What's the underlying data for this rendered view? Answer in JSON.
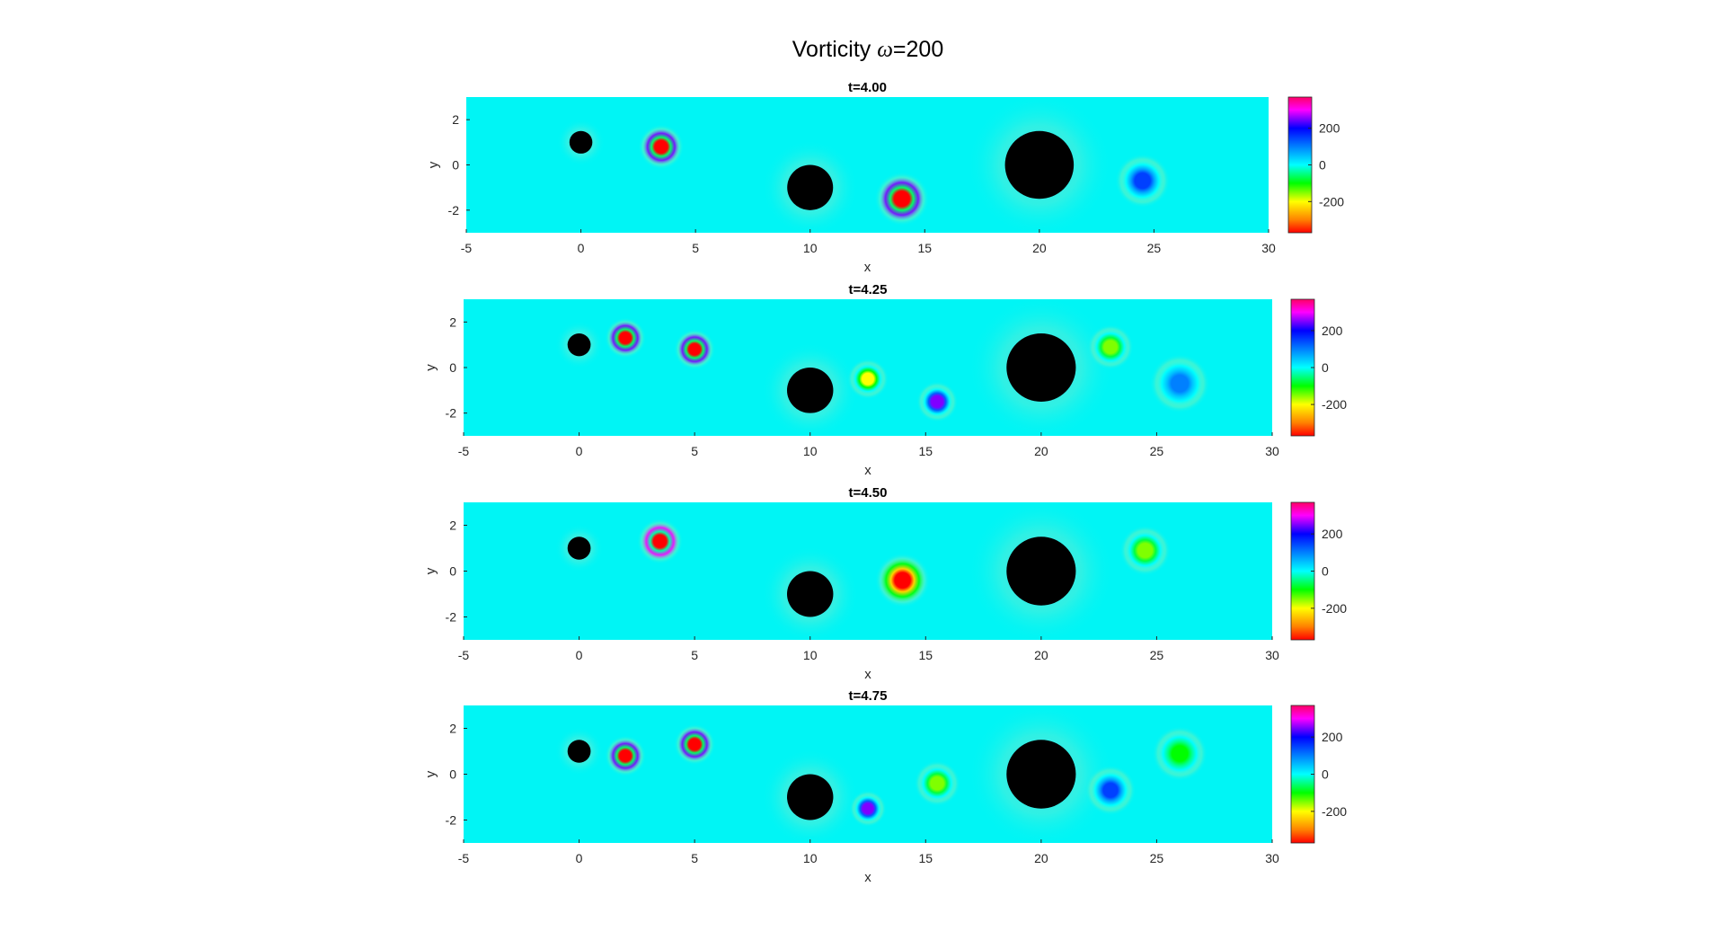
{
  "figure": {
    "title_prefix": "Vorticity ",
    "title_symbol": "ω",
    "title_suffix": "=200"
  },
  "chart_data": [
    {
      "type": "heatmap",
      "title": "t=4.00",
      "xlabel": "x",
      "ylabel": "y",
      "xlim": [
        -5,
        30
      ],
      "ylim": [
        -3,
        3
      ],
      "xticks": [
        -5,
        0,
        5,
        10,
        15,
        20,
        25,
        30
      ],
      "yticks": [
        -2,
        0,
        2
      ],
      "colorbar": {
        "ticks": [
          200,
          0,
          -200
        ],
        "range": [
          -370,
          370
        ]
      },
      "cylinders": [
        {
          "x": 0,
          "y": 1,
          "r": 0.5
        },
        {
          "x": 10,
          "y": -1,
          "r": 1
        },
        {
          "x": 20,
          "y": 0,
          "r": 1.5
        }
      ],
      "vortices": [
        {
          "x": 3.5,
          "y": 0.8,
          "peak": -370,
          "halo": 250,
          "r": 1.0
        },
        {
          "x": 14,
          "y": -1.5,
          "peak": -370,
          "halo": 250,
          "r": 1.2
        },
        {
          "x": 24.5,
          "y": -0.7,
          "peak": 150,
          "halo": 0,
          "r": 1.2
        }
      ]
    },
    {
      "type": "heatmap",
      "title": "t=4.25",
      "xlabel": "x",
      "ylabel": "y",
      "xlim": [
        -5,
        30
      ],
      "ylim": [
        -3,
        3
      ],
      "xticks": [
        -5,
        0,
        5,
        10,
        15,
        20,
        25,
        30
      ],
      "yticks": [
        -2,
        0,
        2
      ],
      "colorbar": {
        "ticks": [
          200,
          0,
          -200
        ],
        "range": [
          -370,
          370
        ]
      },
      "cylinders": [
        {
          "x": 0,
          "y": 1,
          "r": 0.5
        },
        {
          "x": 10,
          "y": -1,
          "r": 1
        },
        {
          "x": 20,
          "y": 0,
          "r": 1.5
        }
      ],
      "vortices": [
        {
          "x": 2,
          "y": 1.3,
          "peak": -370,
          "halo": 250,
          "r": 0.9
        },
        {
          "x": 5,
          "y": 0.8,
          "peak": -370,
          "halo": 250,
          "r": 0.9
        },
        {
          "x": 12.5,
          "y": -0.5,
          "peak": -200,
          "halo": 0,
          "r": 0.9
        },
        {
          "x": 15.5,
          "y": -1.5,
          "peak": 250,
          "halo": 0,
          "r": 0.9
        },
        {
          "x": 23,
          "y": 0.9,
          "peak": -150,
          "halo": 0,
          "r": 1.0
        },
        {
          "x": 26,
          "y": -0.7,
          "peak": 100,
          "halo": 0,
          "r": 1.3
        }
      ]
    },
    {
      "type": "heatmap",
      "title": "t=4.50",
      "xlabel": "x",
      "ylabel": "y",
      "xlim": [
        -5,
        30
      ],
      "ylim": [
        -3,
        3
      ],
      "xticks": [
        -5,
        0,
        5,
        10,
        15,
        20,
        25,
        30
      ],
      "yticks": [
        -2,
        0,
        2
      ],
      "colorbar": {
        "ticks": [
          200,
          0,
          -200
        ],
        "range": [
          -370,
          370
        ]
      },
      "cylinders": [
        {
          "x": 0,
          "y": 1,
          "r": 0.5
        },
        {
          "x": 10,
          "y": -1,
          "r": 1
        },
        {
          "x": 20,
          "y": 0,
          "r": 1.5
        }
      ],
      "vortices": [
        {
          "x": 3.5,
          "y": 1.3,
          "peak": -370,
          "halo": 300,
          "r": 1.0
        },
        {
          "x": 14,
          "y": -0.4,
          "peak": -370,
          "halo": -100,
          "r": 1.2
        },
        {
          "x": 24.5,
          "y": 0.9,
          "peak": -150,
          "halo": 0,
          "r": 1.1
        }
      ]
    },
    {
      "type": "heatmap",
      "title": "t=4.75",
      "xlabel": "x",
      "ylabel": "y",
      "xlim": [
        -5,
        30
      ],
      "ylim": [
        -3,
        3
      ],
      "xticks": [
        -5,
        0,
        5,
        10,
        15,
        20,
        25,
        30
      ],
      "yticks": [
        -2,
        0,
        2
      ],
      "colorbar": {
        "ticks": [
          200,
          0,
          -200
        ],
        "range": [
          -370,
          370
        ]
      },
      "cylinders": [
        {
          "x": 0,
          "y": 1,
          "r": 0.5
        },
        {
          "x": 10,
          "y": -1,
          "r": 1
        },
        {
          "x": 20,
          "y": 0,
          "r": 1.5
        }
      ],
      "vortices": [
        {
          "x": 2,
          "y": 0.8,
          "peak": -370,
          "halo": 250,
          "r": 0.9
        },
        {
          "x": 5,
          "y": 1.3,
          "peak": -370,
          "halo": 250,
          "r": 0.9
        },
        {
          "x": 12.5,
          "y": -1.5,
          "peak": 250,
          "halo": 0,
          "r": 0.8
        },
        {
          "x": 15.5,
          "y": -0.4,
          "peak": -150,
          "halo": 0,
          "r": 1.0
        },
        {
          "x": 23,
          "y": -0.7,
          "peak": 150,
          "halo": 0,
          "r": 1.1
        },
        {
          "x": 26,
          "y": 0.9,
          "peak": -100,
          "halo": 0,
          "r": 1.2
        }
      ]
    }
  ]
}
